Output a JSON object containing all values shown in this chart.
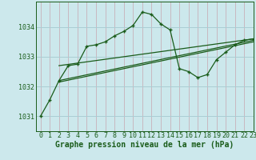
{
  "title": "Graphe pression niveau de la mer (hPa)",
  "bg_color": "#cce8ec",
  "plot_bg_color": "#cce8ec",
  "grid_color": "#aacdd4",
  "line_color": "#1a5c1a",
  "text_color": "#1a5c1a",
  "xlim": [
    -0.5,
    23
  ],
  "ylim": [
    1030.5,
    1034.85
  ],
  "yticks": [
    1031,
    1032,
    1033,
    1034
  ],
  "xticks": [
    0,
    1,
    2,
    3,
    4,
    5,
    6,
    7,
    8,
    9,
    10,
    11,
    12,
    13,
    14,
    15,
    16,
    17,
    18,
    19,
    20,
    21,
    22,
    23
  ],
  "curve1_x": [
    0,
    1,
    2,
    3,
    4,
    5,
    6,
    7,
    8,
    9,
    10,
    11,
    12,
    13,
    14,
    15,
    16,
    17,
    18,
    19,
    20,
    21,
    22,
    23
  ],
  "curve1_y": [
    1031.0,
    1031.55,
    1032.2,
    1032.7,
    1032.75,
    1033.35,
    1033.4,
    1033.5,
    1033.7,
    1033.85,
    1034.05,
    1034.5,
    1034.42,
    1034.1,
    1033.9,
    1032.6,
    1032.5,
    1032.3,
    1032.4,
    1032.9,
    1033.15,
    1033.4,
    1033.55,
    1033.6
  ],
  "trend1_x": [
    2,
    23
  ],
  "trend1_y": [
    1032.7,
    1033.6
  ],
  "trend2_x": [
    2,
    23
  ],
  "trend2_y": [
    1032.2,
    1033.55
  ],
  "trend3_x": [
    2,
    23
  ],
  "trend3_y": [
    1032.15,
    1033.5
  ],
  "xlabel_fontsize": 7,
  "tick_fontsize": 6,
  "ylabel_fontsize": 6
}
